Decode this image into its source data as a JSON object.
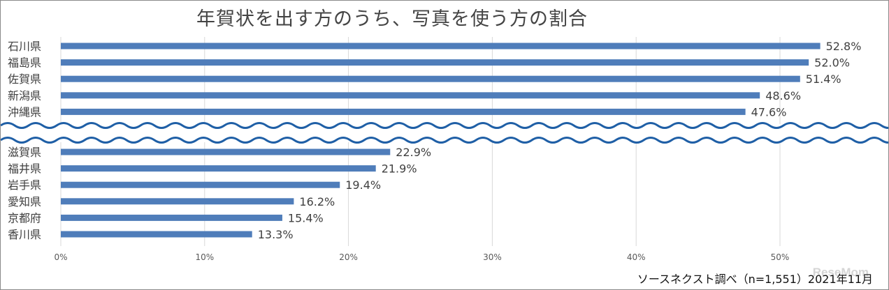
{
  "chart_data": {
    "type": "bar",
    "orientation": "horizontal",
    "title": "年賀状を出す方のうち、写真を使う方の割合",
    "groups": [
      {
        "categories": [
          "石川県",
          "福島県",
          "佐賀県",
          "新潟県",
          "沖縄県"
        ],
        "values": [
          52.8,
          52.0,
          51.4,
          48.6,
          47.6
        ],
        "labels": [
          "52.8%",
          "52.0%",
          "51.4%",
          "48.6%",
          "47.6%"
        ]
      },
      {
        "categories": [
          "滋賀県",
          "福井県",
          "岩手県",
          "愛知県",
          "京都府",
          "香川県"
        ],
        "values": [
          22.9,
          21.9,
          19.4,
          16.2,
          15.4,
          13.3
        ],
        "labels": [
          "22.9%",
          "21.9%",
          "19.4%",
          "16.2%",
          "15.4%",
          "13.3%"
        ]
      }
    ],
    "axis_break": "between groups",
    "xlim": [
      0,
      57
    ],
    "xticks": [
      0,
      10,
      20,
      30,
      40,
      50
    ],
    "xtick_labels": [
      "0%",
      "10%",
      "20%",
      "30%",
      "40%",
      "50%"
    ],
    "xlabel": "",
    "ylabel": "",
    "grid": "vertical",
    "legend": "none",
    "colors": {
      "bar": "#4F7DBA",
      "break_line": "#1F5FA6",
      "grid": "#d9d9d9",
      "text": "#404040",
      "tick": "#595959"
    }
  },
  "source": "ソースネクスト調べ（n=1,551）2021年11月",
  "watermark": "ReseMom"
}
